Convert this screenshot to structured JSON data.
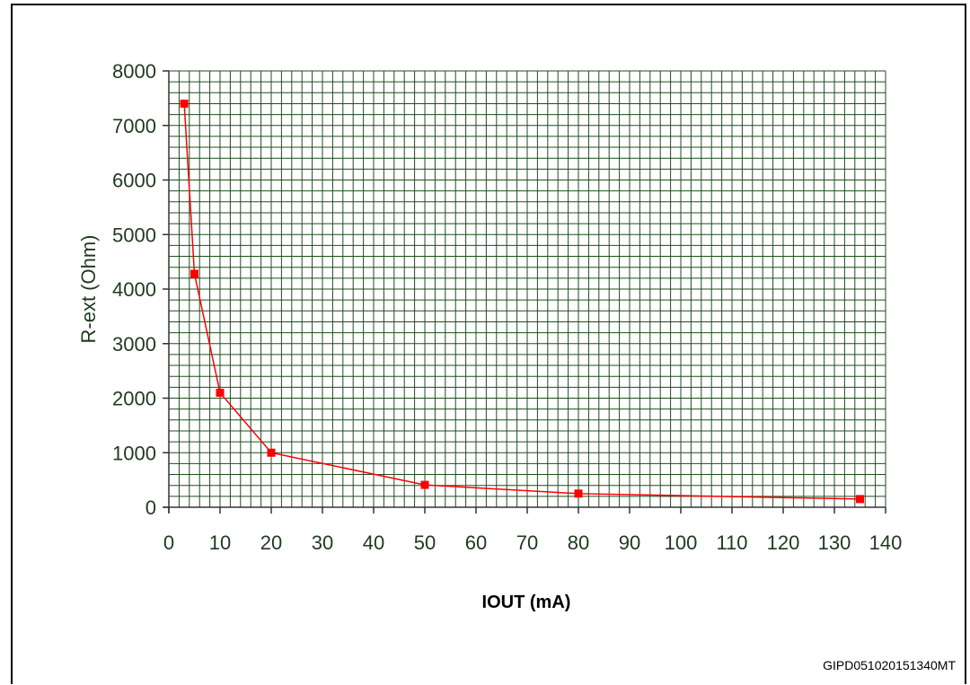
{
  "figure": {
    "code": "GIPD051020151340MT"
  },
  "colors": {
    "grid": "#1f4d1f",
    "series": "#ff0000",
    "axis_text": "#1f3a1f"
  },
  "chart_data": {
    "type": "line",
    "title": "",
    "xlabel": "IOUT (mA)",
    "ylabel": "R-ext (Ohm)",
    "xlim": [
      0,
      140
    ],
    "ylim": [
      0,
      8000
    ],
    "x_ticks": [
      0,
      10,
      20,
      30,
      40,
      50,
      60,
      70,
      80,
      90,
      100,
      110,
      120,
      130,
      140
    ],
    "y_ticks": [
      0,
      1000,
      2000,
      3000,
      4000,
      5000,
      6000,
      7000,
      8000
    ],
    "x_minor_step": 2,
    "y_minor_step": 200,
    "grid": true,
    "series": [
      {
        "x": [
          3,
          5,
          10,
          20,
          50,
          80,
          135
        ],
        "y": [
          7400,
          4280,
          2100,
          1000,
          410,
          250,
          150
        ],
        "marker": "square"
      }
    ]
  }
}
